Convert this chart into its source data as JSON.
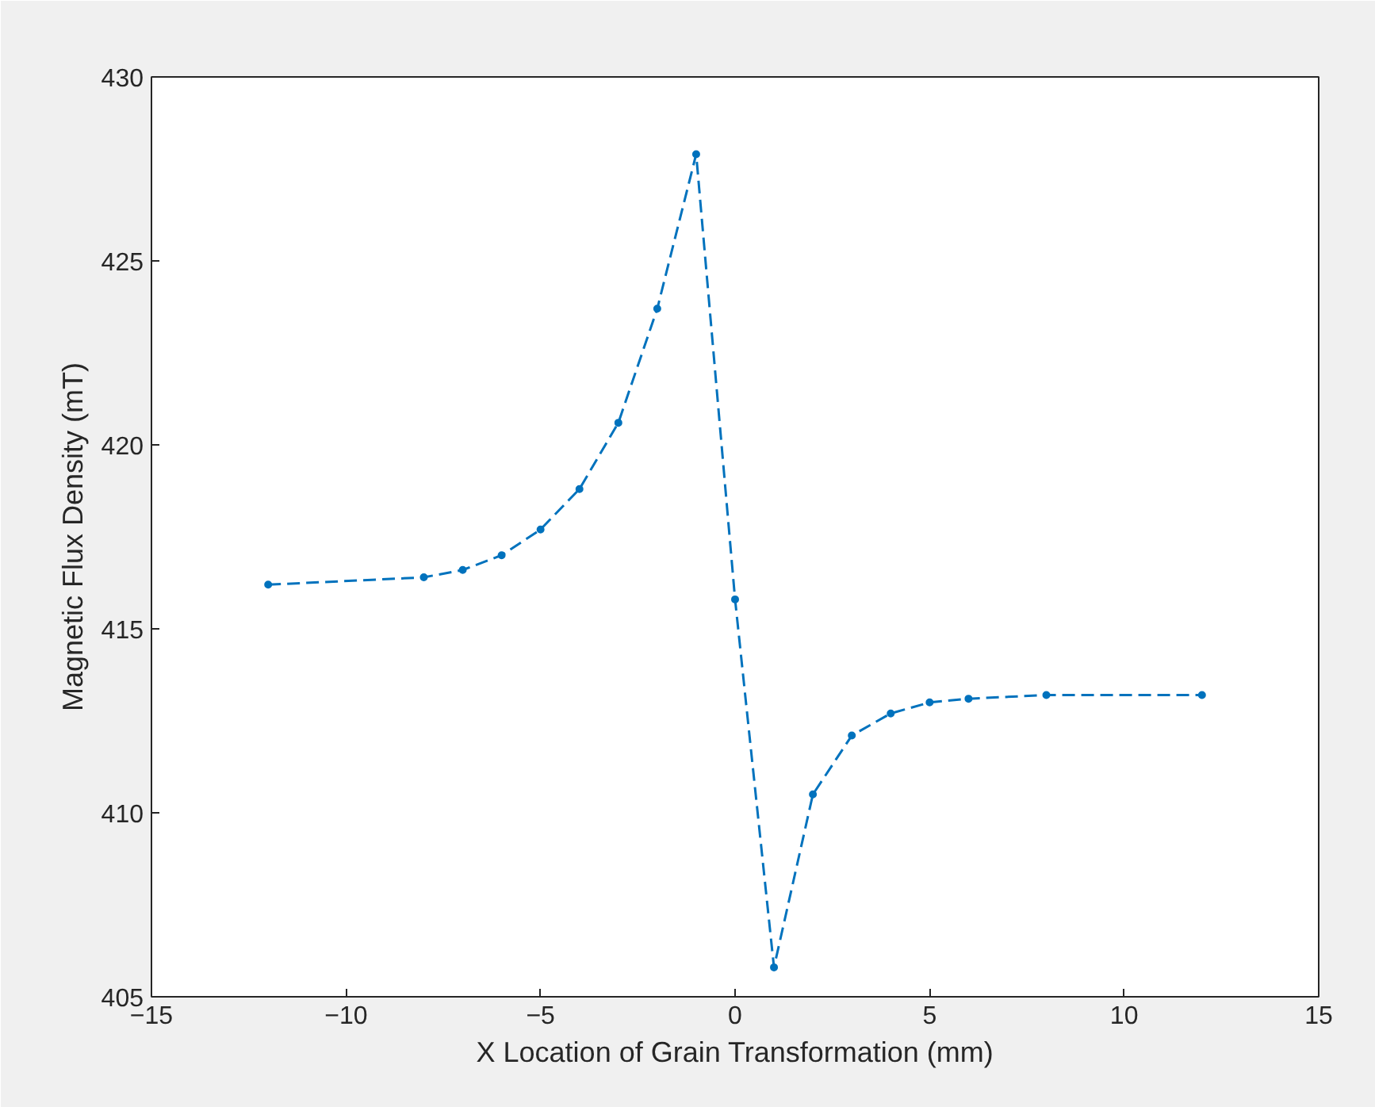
{
  "chart_data": {
    "type": "line",
    "xlabel": "X Location of Grain Transformation (mm)",
    "ylabel": "Magnetic Flux Density (mT)",
    "x": [
      -12,
      -8,
      -7,
      -6,
      -5,
      -4,
      -3,
      -2,
      -1,
      0,
      1,
      2,
      3,
      4,
      5,
      6,
      8,
      12
    ],
    "series": [
      {
        "color": "#0072bd",
        "values": [
          416.2,
          416.4,
          416.6,
          417.0,
          417.7,
          418.8,
          420.6,
          423.7,
          427.9,
          415.8,
          405.8,
          410.5,
          412.1,
          412.7,
          413.0,
          413.1,
          413.2,
          413.2
        ]
      }
    ],
    "xlim": [
      -15,
      15
    ],
    "xticks": [
      -15,
      -10,
      -5,
      0,
      5,
      10,
      15
    ],
    "ylim": [
      405,
      430
    ],
    "yticks": [
      405,
      410,
      415,
      420,
      425,
      430
    ],
    "grid": false,
    "marker": "circle",
    "line_style": "dashed"
  }
}
